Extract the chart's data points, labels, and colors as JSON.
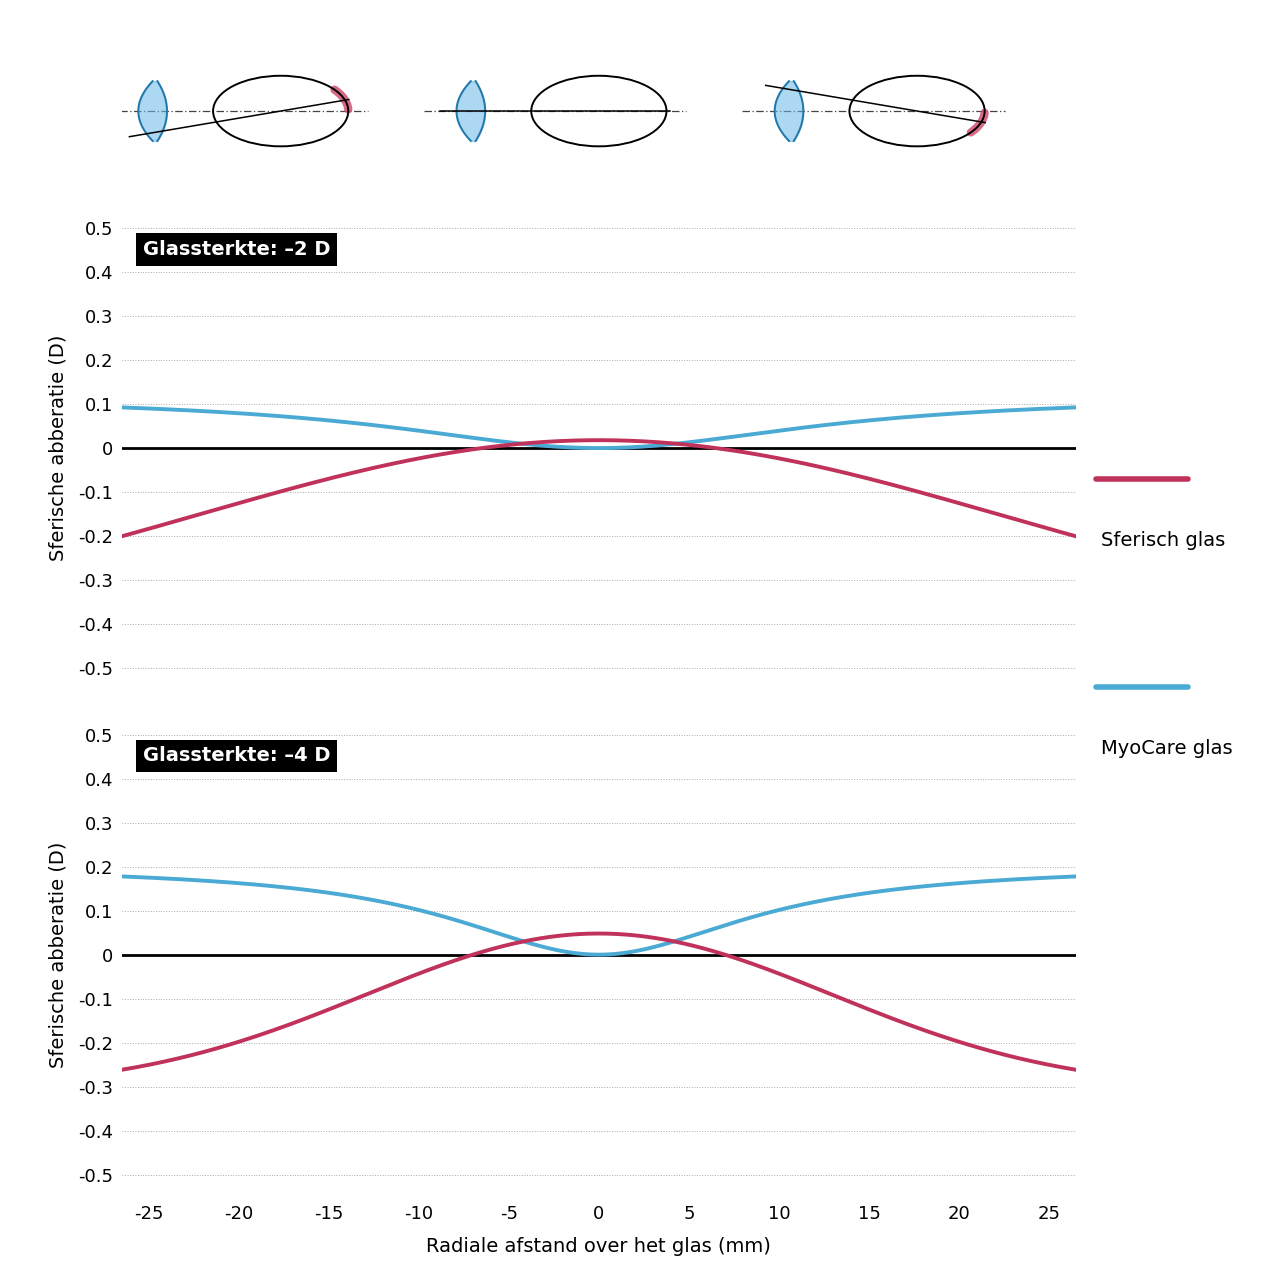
{
  "title1": "Glassterkte: –2 D",
  "title2": "Glassterkte: –4 D",
  "xlabel": "Radiale afstand over het glas (mm)",
  "ylabel": "Sferische abberatie (D)",
  "xlim": [
    -26.5,
    26.5
  ],
  "ylim": [
    -0.55,
    0.55
  ],
  "xticks": [
    -25,
    -20,
    -15,
    -10,
    -5,
    0,
    5,
    10,
    15,
    20,
    25
  ],
  "yticks": [
    -0.5,
    -0.4,
    -0.3,
    -0.2,
    -0.1,
    0.0,
    0.1,
    0.2,
    0.3,
    0.4,
    0.5
  ],
  "ytick_labels": [
    "-0.5",
    "-0.4",
    "-0.3",
    "-0.2",
    "-0.1",
    "0",
    "0.1",
    "0.2",
    "0.3",
    "0.4",
    "0.5"
  ],
  "color_red": "#C0325A",
  "color_blue": "#4AAAD4",
  "legend_sferisch": "Sferisch glas",
  "legend_myocare": "MyoCare glas",
  "line_width": 2.8,
  "font_size_tick": 13,
  "font_size_label": 14,
  "font_size_title": 14,
  "font_size_legend": 14,
  "p1_red_a": 0.428,
  "p1_red_b": -0.41,
  "p1_red_xz": 6.5,
  "p1_blue_A": 0.1188,
  "p1_blue_B": 200,
  "p2_red_a": 0.353,
  "p2_red_b": -0.305,
  "p2_red_xz": 7.0,
  "p2_blue_A": 0.203,
  "p2_blue_B": 100
}
